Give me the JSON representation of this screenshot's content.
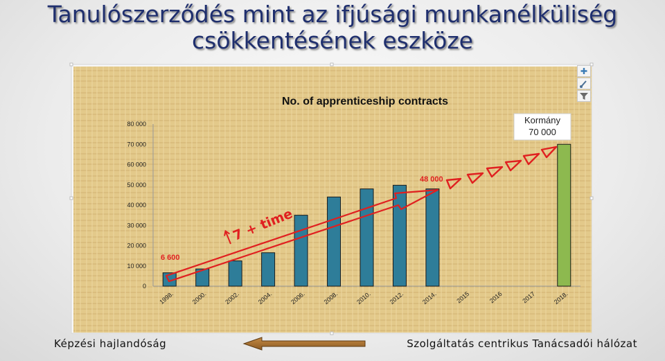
{
  "slide": {
    "title_line1": "Tanulószerződés mint az ifjúsági munkanélküliség",
    "title_line2": "csökkentésének eszköze",
    "footer_left": "Képzési hajlandóság",
    "footer_right": "Szolgáltatás centrikus Tanácsadói hálózat"
  },
  "chart_toolbar": {
    "icons": [
      "plus-icon",
      "brush-icon",
      "filter-icon"
    ]
  },
  "colors": {
    "bar_main": "#2e7d99",
    "bar_highlight": "#8db94f",
    "annotation_red": "#e02020",
    "title_text": "#1f2f6e",
    "footer_arrow": "#a0692b"
  },
  "chart_data": {
    "type": "bar",
    "title": "No. of apprenticeship contracts",
    "categories": [
      "1998.",
      "2000.",
      "2002.",
      "2004.",
      "2006.",
      "2008.",
      "2010.",
      "2012.",
      "2014.",
      "2015",
      "2016",
      "2017",
      "2018."
    ],
    "values": [
      6600,
      8500,
      12500,
      16500,
      35000,
      44000,
      48000,
      49800,
      48000,
      null,
      null,
      null,
      70000
    ],
    "highlight_index": 12,
    "ylim": [
      0,
      80000
    ],
    "yticks": [
      "0",
      "10 000",
      "20 000",
      "30 000",
      "40 000",
      "50 000",
      "60 000",
      "70 000",
      "80 000"
    ],
    "grid": false,
    "annotations": {
      "start_label": "6 600",
      "peak_label": "48 000",
      "trend_label": "7 + time",
      "callout_line1": "Kormány",
      "callout_line2": "70 000"
    }
  }
}
